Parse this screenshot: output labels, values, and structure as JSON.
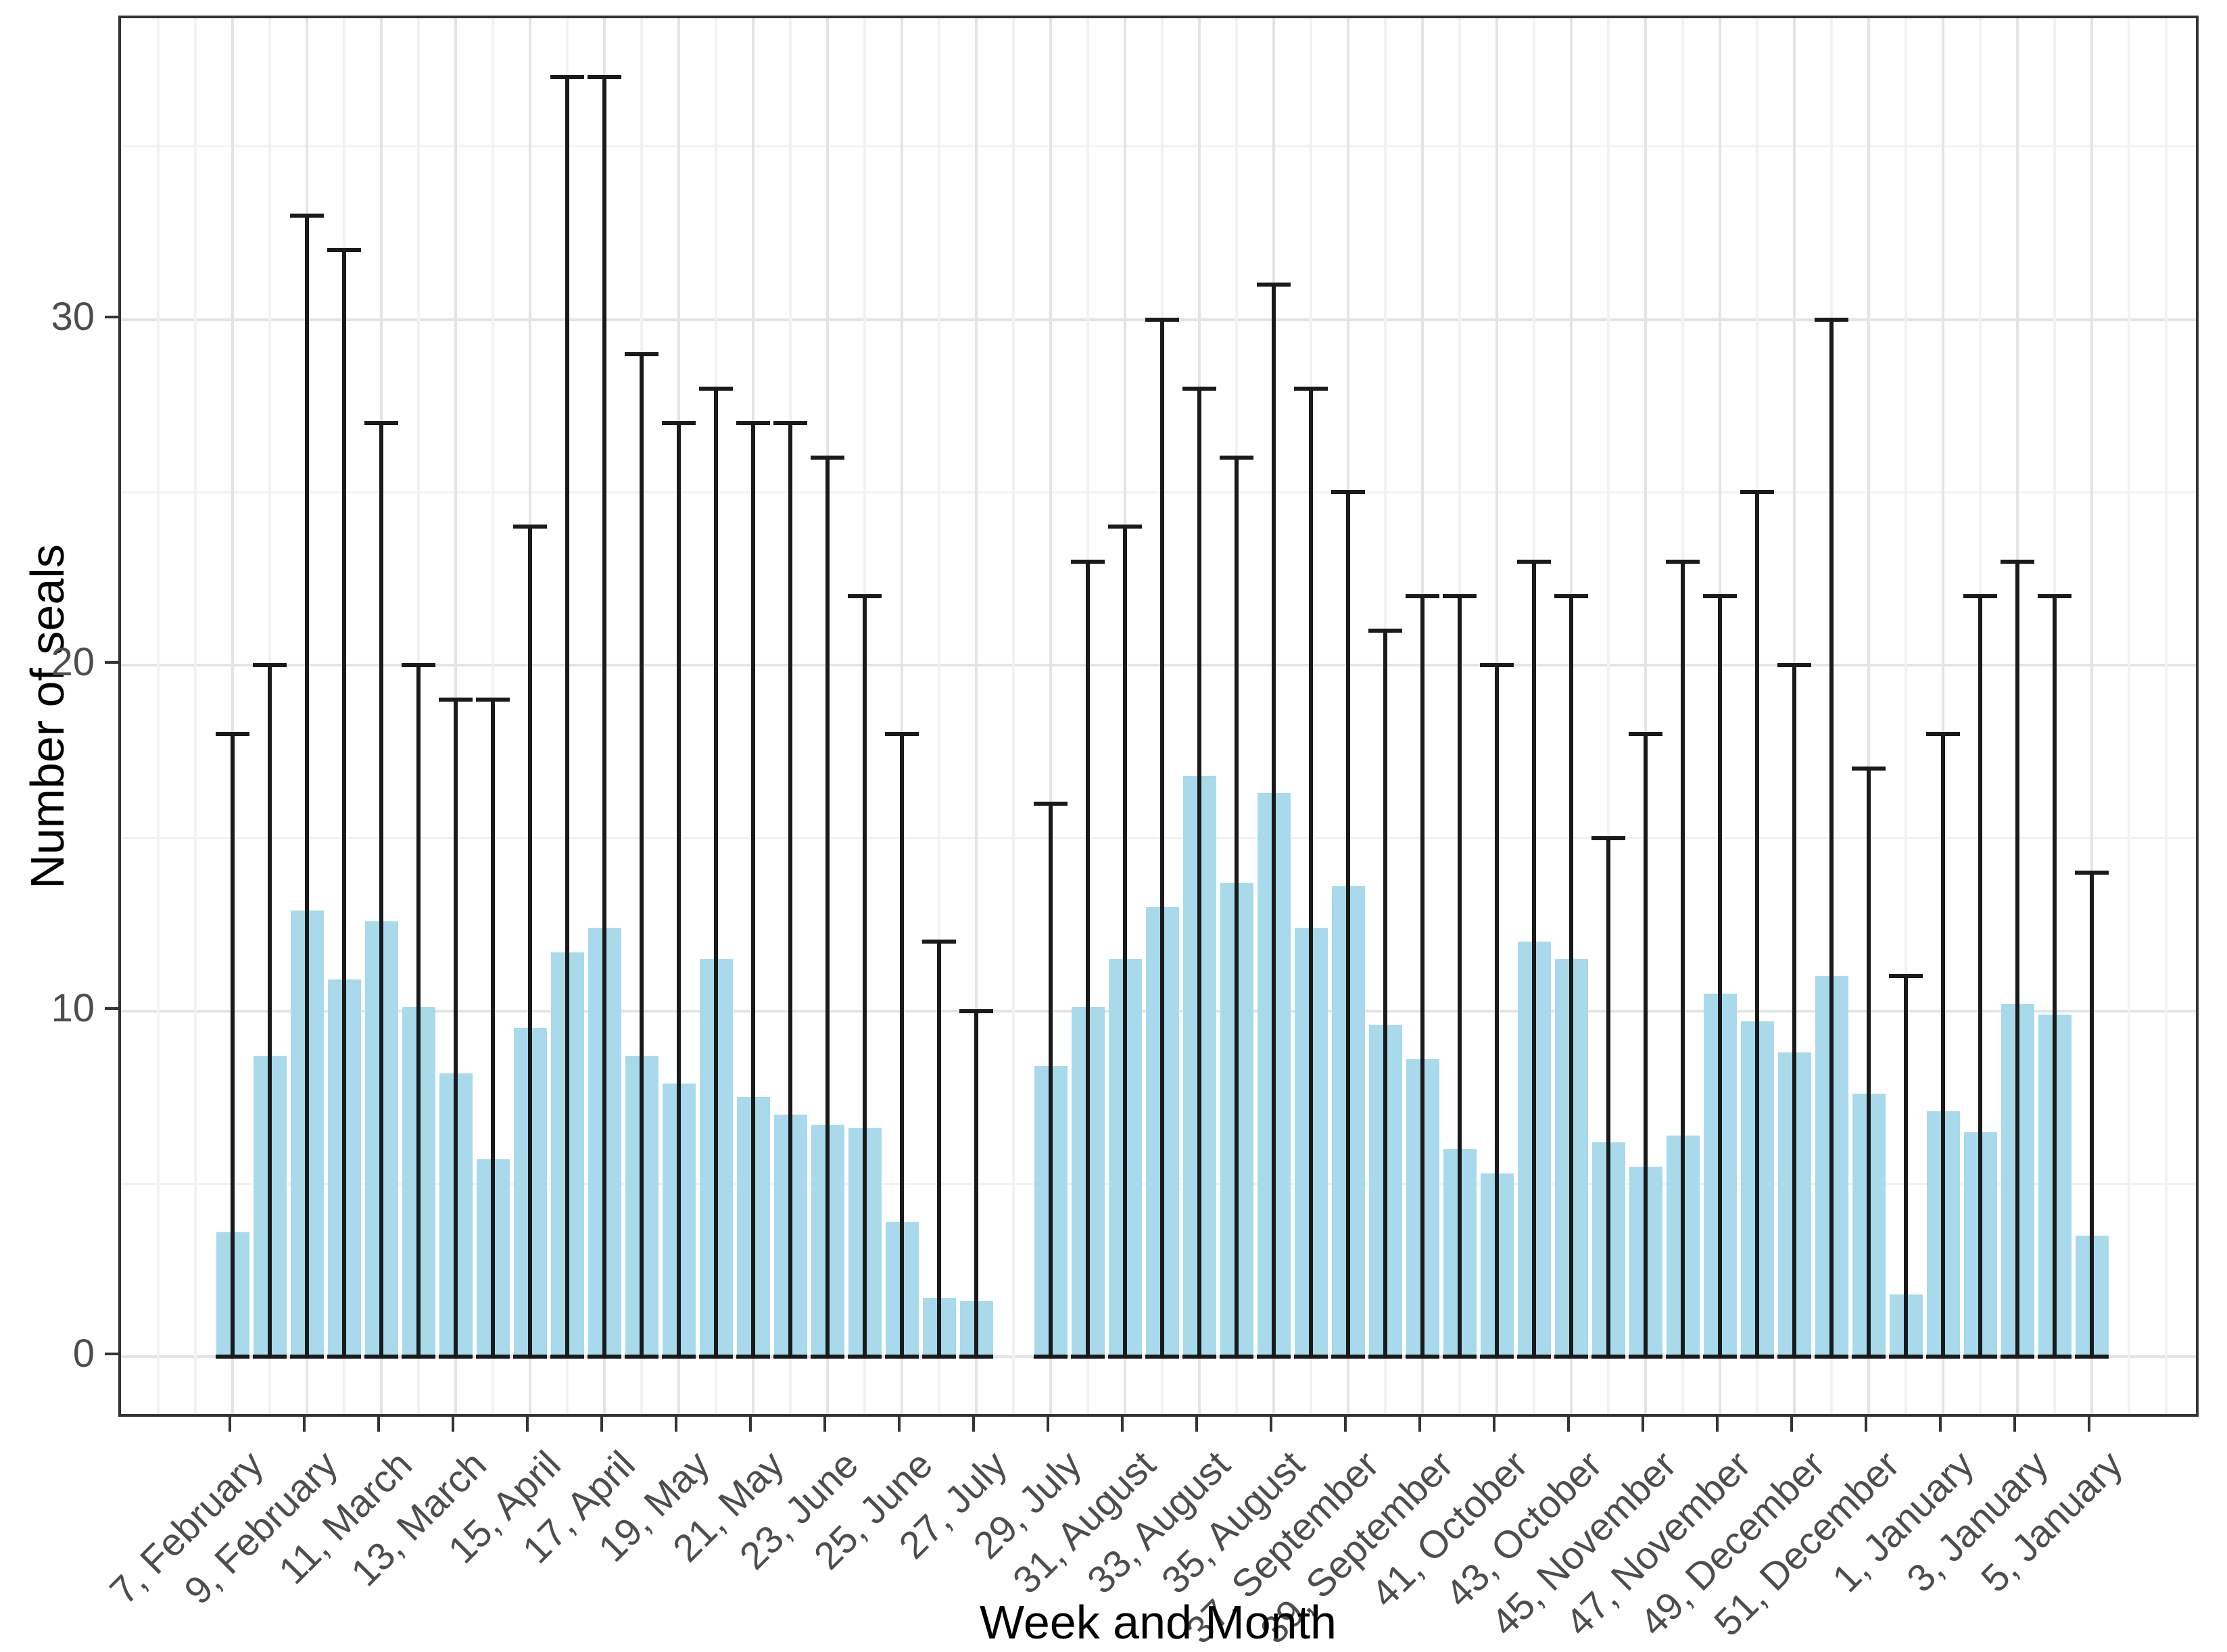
{
  "chart_data": {
    "type": "bar",
    "title": "",
    "xlabel": "Week and Month",
    "ylabel": "Number of seals",
    "legend_position": "none",
    "grid": true,
    "y_ticks": [
      0,
      10,
      20,
      30
    ],
    "y_minor_gridlines": [
      5,
      15,
      25,
      35
    ],
    "ylim": [
      -1.8,
      38.7
    ],
    "bar_style": "light blue bars with black range whiskers (0 to max) capped at both ends",
    "gap_note": "week 28 slot is empty (no bar between 27, July and 29, July)",
    "colors": {
      "bar_fill": "#A8DAEC",
      "errorbar": "#1A1A1A",
      "axis_text": "#4D4D4D",
      "axis_title": "#000000",
      "panel_border": "#333333",
      "grid_major": "#E4E4E4",
      "grid_minor": "#F2F2F2",
      "background": "#FFFFFF"
    },
    "points": [
      {
        "week": 7,
        "tick_label": "7, February",
        "mean": 3.6,
        "max": 18
      },
      {
        "week": 8,
        "tick_label": "",
        "mean": 8.7,
        "max": 20
      },
      {
        "week": 9,
        "tick_label": "9, February",
        "mean": 12.9,
        "max": 33
      },
      {
        "week": 10,
        "tick_label": "",
        "mean": 10.9,
        "max": 32
      },
      {
        "week": 11,
        "tick_label": "11, March",
        "mean": 12.6,
        "max": 27
      },
      {
        "week": 12,
        "tick_label": "",
        "mean": 10.1,
        "max": 20
      },
      {
        "week": 13,
        "tick_label": "13, March",
        "mean": 8.2,
        "max": 19
      },
      {
        "week": 14,
        "tick_label": "",
        "mean": 5.7,
        "max": 19
      },
      {
        "week": 15,
        "tick_label": "15, April",
        "mean": 9.5,
        "max": 24
      },
      {
        "week": 16,
        "tick_label": "",
        "mean": 11.7,
        "max": 37
      },
      {
        "week": 17,
        "tick_label": "17, April",
        "mean": 12.4,
        "max": 37
      },
      {
        "week": 18,
        "tick_label": "",
        "mean": 8.7,
        "max": 29
      },
      {
        "week": 19,
        "tick_label": "19, May",
        "mean": 7.9,
        "max": 27
      },
      {
        "week": 20,
        "tick_label": "",
        "mean": 11.5,
        "max": 28
      },
      {
        "week": 21,
        "tick_label": "21, May",
        "mean": 7.5,
        "max": 27
      },
      {
        "week": 22,
        "tick_label": "",
        "mean": 7.0,
        "max": 27
      },
      {
        "week": 23,
        "tick_label": "23, June",
        "mean": 6.7,
        "max": 26
      },
      {
        "week": 24,
        "tick_label": "",
        "mean": 6.6,
        "max": 22
      },
      {
        "week": 25,
        "tick_label": "25, June",
        "mean": 3.9,
        "max": 18
      },
      {
        "week": 26,
        "tick_label": "",
        "mean": 1.7,
        "max": 12
      },
      {
        "week": 27,
        "tick_label": "27, July",
        "mean": 1.6,
        "max": 10
      },
      {
        "week": 28,
        "tick_label": "",
        "mean": null,
        "max": null
      },
      {
        "week": 29,
        "tick_label": "29, July",
        "mean": 8.4,
        "max": 16
      },
      {
        "week": 30,
        "tick_label": "",
        "mean": 10.1,
        "max": 23
      },
      {
        "week": 31,
        "tick_label": "31, August",
        "mean": 11.5,
        "max": 24
      },
      {
        "week": 32,
        "tick_label": "",
        "mean": 13.0,
        "max": 30
      },
      {
        "week": 33,
        "tick_label": "33, August",
        "mean": 16.8,
        "max": 28
      },
      {
        "week": 34,
        "tick_label": "",
        "mean": 13.7,
        "max": 26
      },
      {
        "week": 35,
        "tick_label": "35, August",
        "mean": 16.3,
        "max": 31
      },
      {
        "week": 36,
        "tick_label": "",
        "mean": 12.4,
        "max": 28
      },
      {
        "week": 37,
        "tick_label": "37, September",
        "mean": 13.6,
        "max": 25
      },
      {
        "week": 38,
        "tick_label": "",
        "mean": 9.6,
        "max": 21
      },
      {
        "week": 39,
        "tick_label": "39, September",
        "mean": 8.6,
        "max": 22
      },
      {
        "week": 40,
        "tick_label": "",
        "mean": 6.0,
        "max": 22
      },
      {
        "week": 41,
        "tick_label": "41, October",
        "mean": 5.3,
        "max": 20
      },
      {
        "week": 42,
        "tick_label": "",
        "mean": 12.0,
        "max": 23
      },
      {
        "week": 43,
        "tick_label": "43, October",
        "mean": 11.5,
        "max": 22
      },
      {
        "week": 44,
        "tick_label": "",
        "mean": 6.2,
        "max": 15
      },
      {
        "week": 45,
        "tick_label": "45, November",
        "mean": 5.5,
        "max": 18
      },
      {
        "week": 46,
        "tick_label": "",
        "mean": 6.4,
        "max": 23
      },
      {
        "week": 47,
        "tick_label": "47, November",
        "mean": 10.5,
        "max": 22
      },
      {
        "week": 48,
        "tick_label": "",
        "mean": 9.7,
        "max": 25
      },
      {
        "week": 49,
        "tick_label": "49, December",
        "mean": 8.8,
        "max": 20
      },
      {
        "week": 50,
        "tick_label": "",
        "mean": 11.0,
        "max": 30
      },
      {
        "week": 51,
        "tick_label": "51, December",
        "mean": 7.6,
        "max": 17
      },
      {
        "week": 52,
        "tick_label": "",
        "mean": 1.8,
        "max": 11
      },
      {
        "week": 1,
        "tick_label": "1, January",
        "mean": 7.1,
        "max": 18
      },
      {
        "week": 2,
        "tick_label": "",
        "mean": 6.5,
        "max": 22
      },
      {
        "week": 3,
        "tick_label": "3, January",
        "mean": 10.2,
        "max": 23
      },
      {
        "week": 4,
        "tick_label": "",
        "mean": 9.9,
        "max": 22
      },
      {
        "week": 5,
        "tick_label": "5, January",
        "mean": 3.5,
        "max": 14
      }
    ]
  }
}
